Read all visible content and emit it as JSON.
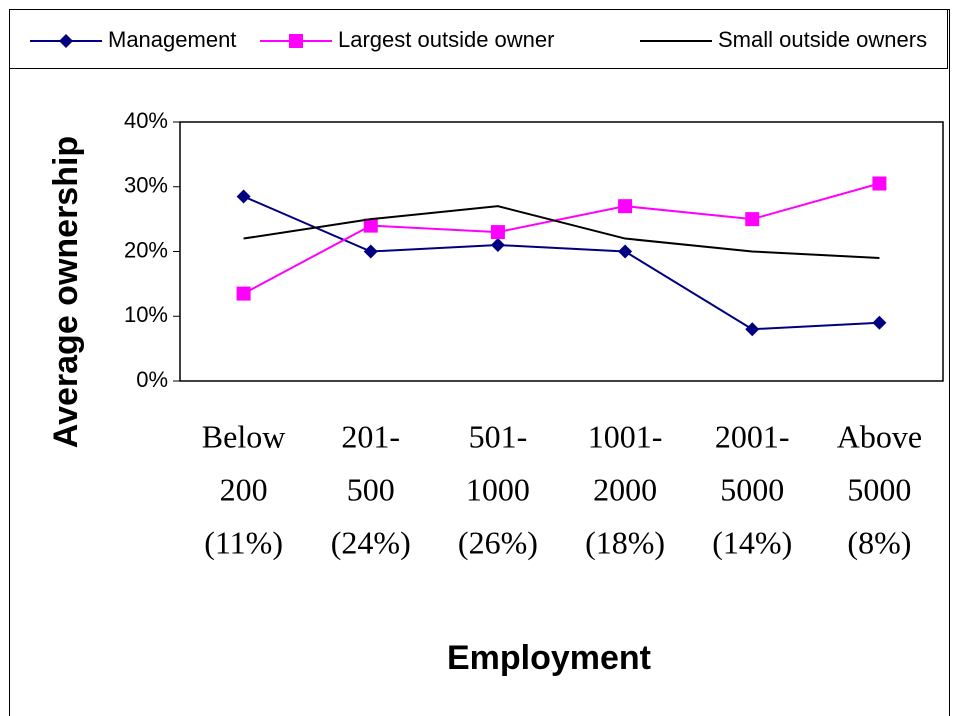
{
  "chart_data": {
    "type": "line",
    "xlabel": "Employment",
    "ylabel": "Average ownership",
    "categories": [
      [
        "Below",
        "200",
        "(11%)"
      ],
      [
        "201-",
        "500",
        "(24%)"
      ],
      [
        "501-",
        "1000",
        "(26%)"
      ],
      [
        "1001-",
        "2000",
        "(18%)"
      ],
      [
        "2001-",
        "5000",
        "(14%)"
      ],
      [
        "Above",
        "5000",
        "(8%)"
      ]
    ],
    "series": [
      {
        "name": "Management",
        "color": "#000080",
        "marker": "diamond",
        "values": [
          28.5,
          20,
          21,
          20,
          8,
          9
        ]
      },
      {
        "name": "Largest outside owner",
        "color": "#ff00ff",
        "marker": "square",
        "values": [
          13.5,
          24,
          23,
          27,
          25,
          30.5
        ]
      },
      {
        "name": "Small outside owners",
        "color": "#000000",
        "marker": "none",
        "values": [
          22,
          25,
          27,
          22,
          20,
          19
        ]
      }
    ],
    "ylim": [
      0,
      40
    ],
    "yticks": [
      {
        "value": 0,
        "label": "0%"
      },
      {
        "value": 10,
        "label": "10%"
      },
      {
        "value": 20,
        "label": "20%"
      },
      {
        "value": 30,
        "label": "30%"
      },
      {
        "value": 40,
        "label": "40%"
      }
    ],
    "legend": "top",
    "grid": false
  }
}
